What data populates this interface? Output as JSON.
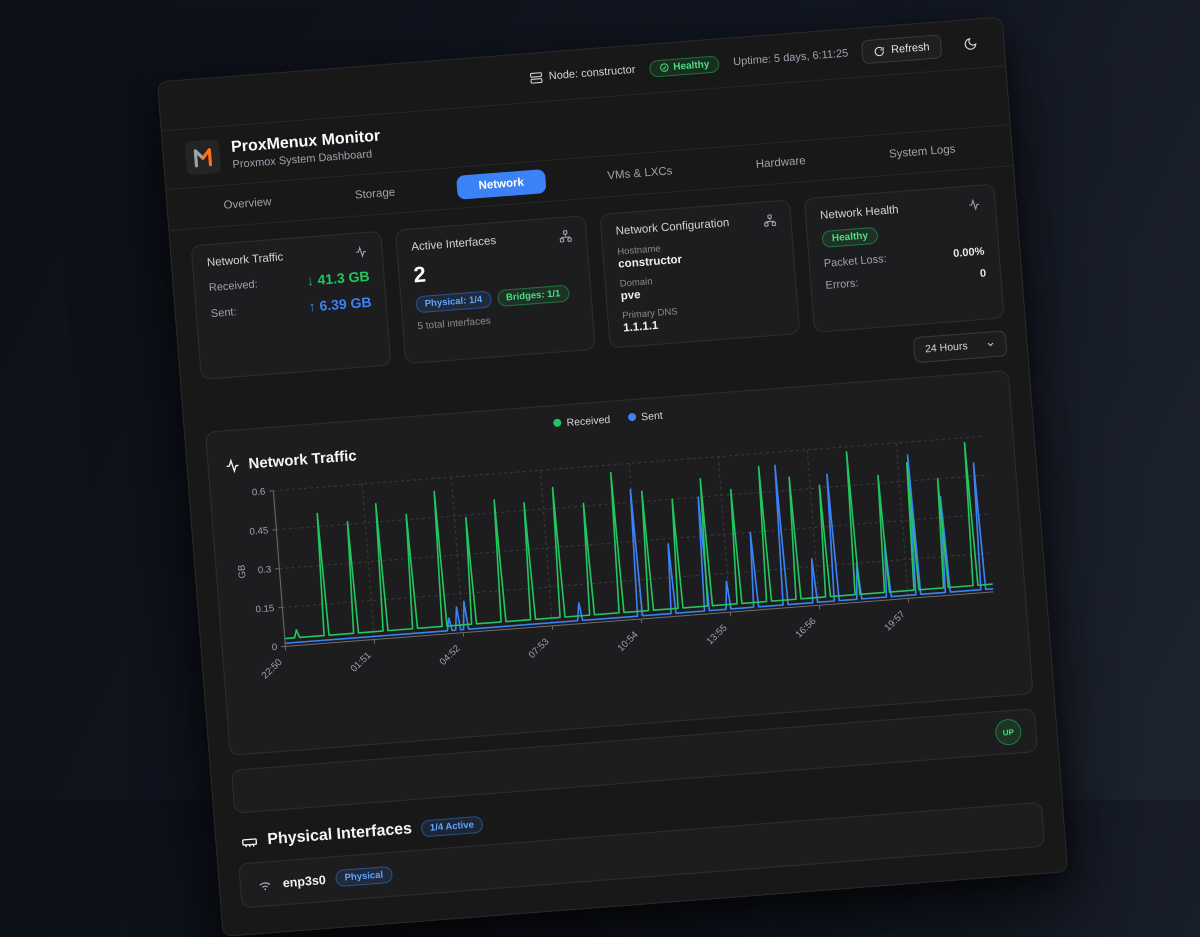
{
  "topbar": {
    "node_label": "Node: constructor",
    "health_badge": "Healthy",
    "uptime": "Uptime: 5 days, 6:11:25",
    "refresh_label": "Refresh"
  },
  "header": {
    "title": "ProxMenux Monitor",
    "subtitle": "Proxmox System Dashboard"
  },
  "tabs": [
    {
      "label": "Overview"
    },
    {
      "label": "Storage"
    },
    {
      "label": "Network"
    },
    {
      "label": "VMs & LXCs"
    },
    {
      "label": "Hardware"
    },
    {
      "label": "System Logs"
    }
  ],
  "cards": {
    "traffic": {
      "title": "Network Traffic",
      "received_label": "Received:",
      "received_value": "↓ 41.3 GB",
      "sent_label": "Sent:",
      "sent_value": "↑ 6.39 GB"
    },
    "interfaces": {
      "title": "Active Interfaces",
      "count": "2",
      "physical_badge": "Physical: 1/4",
      "bridges_badge": "Bridges: 1/1",
      "total": "5 total interfaces"
    },
    "config": {
      "title": "Network Configuration",
      "hostname_label": "Hostname",
      "hostname": "constructor",
      "domain_label": "Domain",
      "domain": "pve",
      "dns_label": "Primary DNS",
      "dns": "1.1.1.1"
    },
    "health": {
      "title": "Network Health",
      "status": "Healthy",
      "packet_loss_label": "Packet Loss:",
      "packet_loss": "0.00%",
      "errors_label": "Errors:",
      "errors": "0"
    }
  },
  "time_range": {
    "selected": "24 Hours"
  },
  "chart_section": {
    "title": "Network Traffic",
    "legend": [
      {
        "label": "Received",
        "color": "#22c55e"
      },
      {
        "label": "Sent",
        "color": "#3b82f6"
      }
    ]
  },
  "chart_data": {
    "type": "line",
    "title": "Network Traffic",
    "xlabel": "",
    "ylabel": "GB",
    "ylim": [
      0,
      0.6
    ],
    "yticks": [
      0,
      0.15,
      0.3,
      0.45,
      0.6
    ],
    "grid": "dashed",
    "legend_position": "top-center",
    "x_range_minutes": 1440,
    "xticks": [
      {
        "t": 0,
        "label": "22:50"
      },
      {
        "t": 181,
        "label": "01:51"
      },
      {
        "t": 362,
        "label": "04:52"
      },
      {
        "t": 543,
        "label": "07:53"
      },
      {
        "t": 724,
        "label": "10:54"
      },
      {
        "t": 905,
        "label": "13:55"
      },
      {
        "t": 1086,
        "label": "16:56"
      },
      {
        "t": 1267,
        "label": "19:57"
      }
    ],
    "series": [
      {
        "name": "Received",
        "color": "#22c55e",
        "baseline": 0.03,
        "spikes": [
          [
            25,
            0.06
          ],
          [
            85,
            0.5
          ],
          [
            145,
            0.46
          ],
          [
            205,
            0.52
          ],
          [
            265,
            0.47
          ],
          [
            325,
            0.55
          ],
          [
            385,
            0.44
          ],
          [
            445,
            0.5
          ],
          [
            505,
            0.48
          ],
          [
            565,
            0.53
          ],
          [
            625,
            0.46
          ],
          [
            685,
            0.57
          ],
          [
            745,
            0.49
          ],
          [
            805,
            0.45
          ],
          [
            865,
            0.52
          ],
          [
            925,
            0.47
          ],
          [
            985,
            0.55
          ],
          [
            1045,
            0.5
          ],
          [
            1105,
            0.46
          ],
          [
            1165,
            0.58
          ],
          [
            1225,
            0.48
          ],
          [
            1285,
            0.52
          ],
          [
            1345,
            0.45
          ],
          [
            1405,
            0.58
          ]
        ]
      },
      {
        "name": "Sent",
        "color": "#3b82f6",
        "baseline": 0.012,
        "spikes": [
          [
            335,
            0.06
          ],
          [
            352,
            0.1
          ],
          [
            368,
            0.12
          ],
          [
            600,
            0.08
          ],
          [
            722,
            0.5
          ],
          [
            790,
            0.28
          ],
          [
            858,
            0.45
          ],
          [
            902,
            0.12
          ],
          [
            958,
            0.3
          ],
          [
            1018,
            0.55
          ],
          [
            1078,
            0.18
          ],
          [
            1122,
            0.5
          ],
          [
            1168,
            0.15
          ],
          [
            1228,
            0.22
          ],
          [
            1288,
            0.55
          ],
          [
            1348,
            0.38
          ],
          [
            1420,
            0.5
          ]
        ]
      }
    ]
  },
  "status_row": {
    "badge": "UP"
  },
  "physical_section": {
    "title": "Physical Interfaces",
    "active_badge": "1/4 Active",
    "rows": [
      {
        "name": "enp3s0",
        "badge": "Physical"
      }
    ]
  },
  "colors": {
    "accent_blue": "#3b82f6",
    "green": "#22c55e",
    "card_bg": "#1d1d1f",
    "surface_bg": "#181818",
    "logo_orange": "#f97316"
  }
}
